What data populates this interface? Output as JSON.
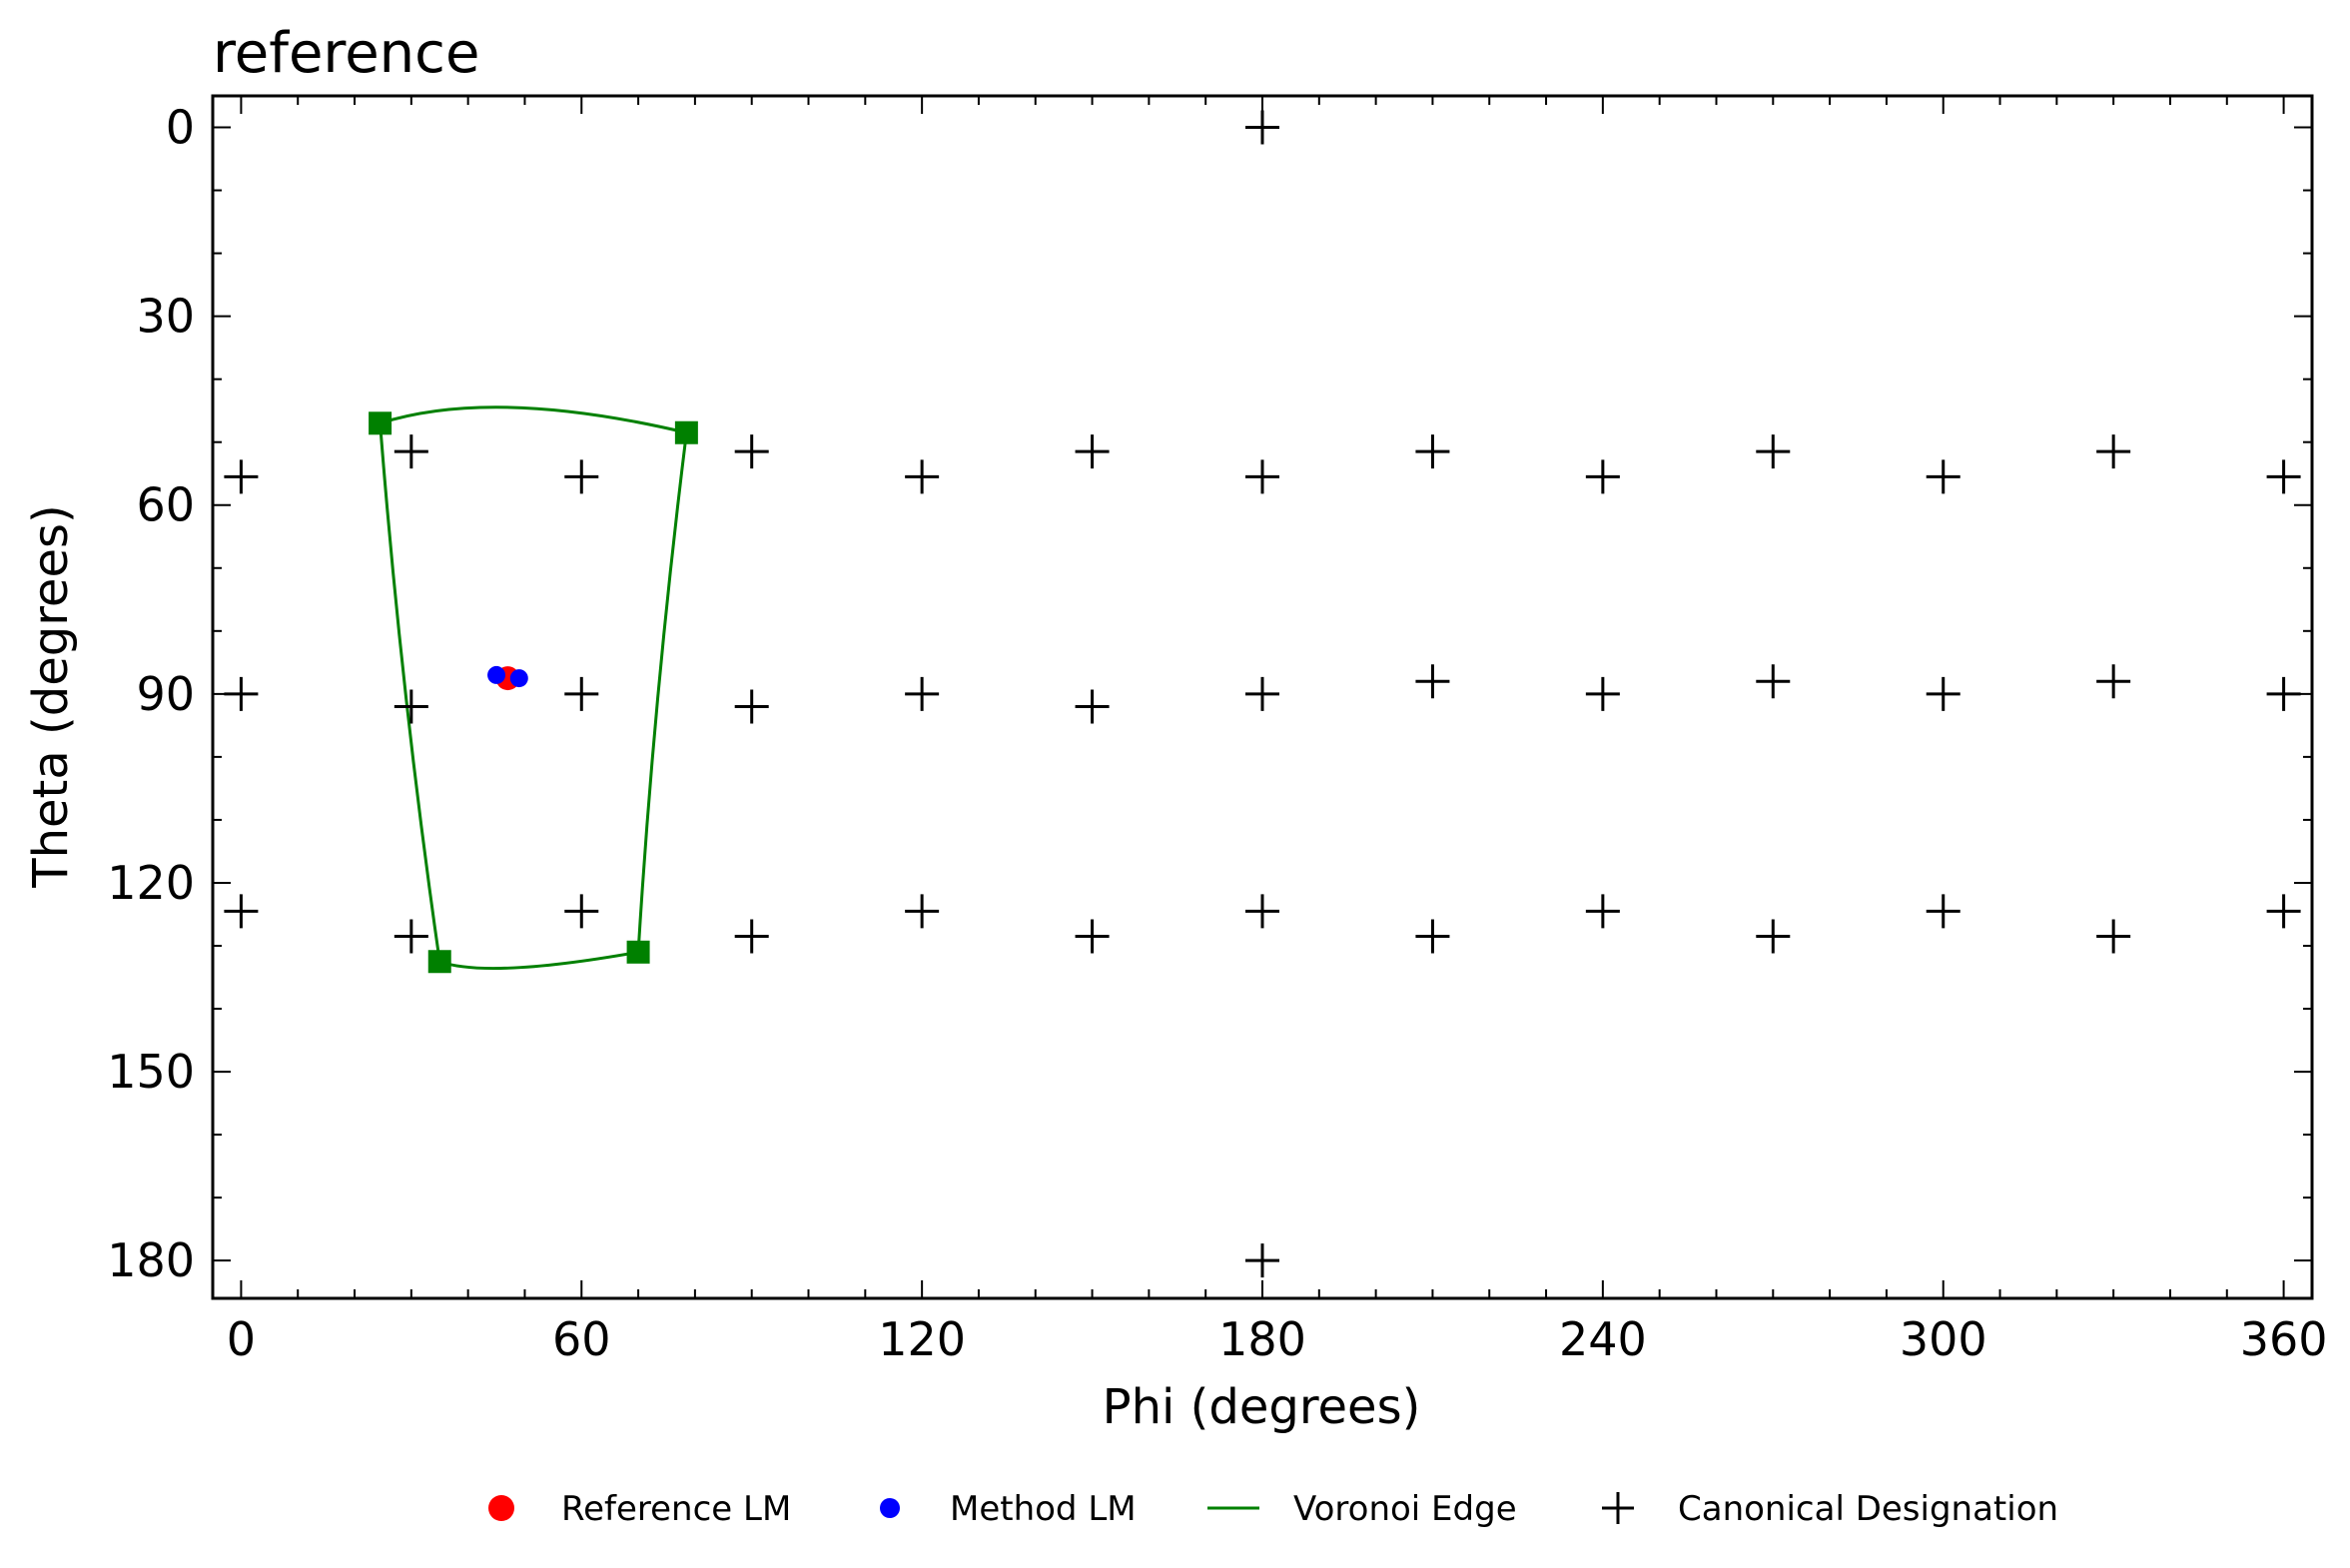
{
  "chart_data": {
    "type": "scatter",
    "title": "reference",
    "xlabel": "Phi (degrees)",
    "ylabel": "Theta (degrees)",
    "xlim": [
      -5,
      365
    ],
    "ylim": [
      186,
      -5
    ],
    "y_inverted": true,
    "xticks": [
      0,
      60,
      120,
      180,
      240,
      300,
      360
    ],
    "yticks": [
      0,
      30,
      60,
      90,
      120,
      150,
      180
    ],
    "grid": false,
    "legend_position": "bottom-center",
    "colors": {
      "reference": "#ff0000",
      "method": "#0000ff",
      "voronoi": "#008000",
      "canonical": "#000000"
    },
    "legend": [
      {
        "label": "Reference LM",
        "marker": "circle",
        "color": "#ff0000"
      },
      {
        "label": "Method LM",
        "marker": "circle-small",
        "color": "#0000ff"
      },
      {
        "label": "Voronoi Edge",
        "marker": "line",
        "color": "#008000"
      },
      {
        "label": "Canonical Designation",
        "marker": "plus",
        "color": "#000000"
      }
    ],
    "series": [
      {
        "name": "Reference LM",
        "marker": "circle",
        "points": [
          [
            47,
            87.5
          ]
        ]
      },
      {
        "name": "Method LM",
        "marker": "circle",
        "points": [
          [
            45,
            87
          ],
          [
            49,
            87.5
          ]
        ]
      },
      {
        "name": "Voronoi Edge",
        "marker": "line",
        "vertices": [
          [
            24.5,
            47
          ],
          [
            78.5,
            48.5
          ],
          [
            70,
            131
          ],
          [
            35,
            132.5
          ]
        ],
        "edges": [
          {
            "from": [
              24.5,
              47
            ],
            "to": [
              78.5,
              48.5
            ],
            "mid": [
              48,
              44.5
            ]
          },
          {
            "from": [
              78.5,
              48.5
            ],
            "to": [
              70,
              131
            ],
            "mid": [
              73.5,
              90
            ]
          },
          {
            "from": [
              70,
              131
            ],
            "to": [
              35,
              132.5
            ],
            "mid": [
              48,
              133.5
            ]
          },
          {
            "from": [
              35,
              132.5
            ],
            "to": [
              24.5,
              47
            ],
            "mid": [
              29,
              90
            ]
          }
        ]
      },
      {
        "name": "Canonical Designation",
        "marker": "plus",
        "points": [
          [
            180,
            0
          ],
          [
            180,
            180
          ],
          [
            0,
            55.5
          ],
          [
            60,
            55.5
          ],
          [
            120,
            55.5
          ],
          [
            180,
            55.5
          ],
          [
            240,
            55.5
          ],
          [
            300,
            55.5
          ],
          [
            360,
            55.5
          ],
          [
            30,
            51.5
          ],
          [
            90,
            51.5
          ],
          [
            150,
            51.5
          ],
          [
            210,
            51.5
          ],
          [
            270,
            51.5
          ],
          [
            330,
            51.5
          ],
          [
            0,
            90
          ],
          [
            60,
            90
          ],
          [
            120,
            90
          ],
          [
            180,
            90
          ],
          [
            240,
            90
          ],
          [
            300,
            90
          ],
          [
            360,
            90
          ],
          [
            30,
            92
          ],
          [
            90,
            92
          ],
          [
            150,
            92
          ],
          [
            210,
            88
          ],
          [
            270,
            88
          ],
          [
            330,
            88
          ],
          [
            0,
            124.5
          ],
          [
            60,
            124.5
          ],
          [
            120,
            124.5
          ],
          [
            180,
            124.5
          ],
          [
            240,
            124.5
          ],
          [
            300,
            124.5
          ],
          [
            360,
            124.5
          ],
          [
            30,
            128.5
          ],
          [
            90,
            128.5
          ],
          [
            150,
            128.5
          ],
          [
            210,
            128.5
          ],
          [
            270,
            128.5
          ],
          [
            330,
            128.5
          ]
        ]
      }
    ]
  }
}
